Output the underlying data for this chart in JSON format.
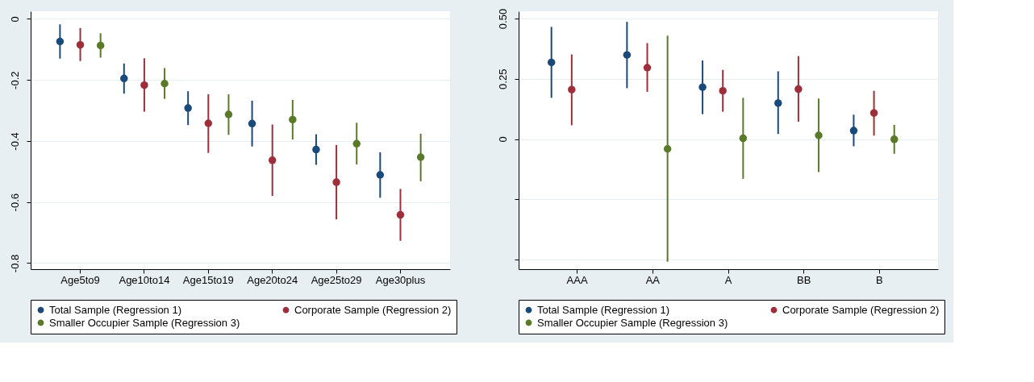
{
  "chart_data": [
    {
      "type": "scatter",
      "categories": [
        "Age5to9",
        "Age10to14",
        "Age15to19",
        "Age20to24",
        "Age25to29",
        "Age30plus"
      ],
      "series": [
        {
          "name": "Total Sample (Regression 1)",
          "color": "#1a4a7a",
          "values": [
            -0.074,
            -0.195,
            -0.292,
            -0.343,
            -0.428,
            -0.511
          ],
          "errors": [
            [
              -0.13,
              -0.018
            ],
            [
              -0.245,
              -0.146
            ],
            [
              -0.348,
              -0.237
            ],
            [
              -0.418,
              -0.268
            ],
            [
              -0.478,
              -0.378
            ],
            [
              -0.586,
              -0.437
            ]
          ]
        },
        {
          "name": "Corporate Sample (Regression 2)",
          "color": "#9e2f3a",
          "values": [
            -0.085,
            -0.217,
            -0.342,
            -0.463,
            -0.535,
            -0.642
          ],
          "errors": [
            [
              -0.138,
              -0.03
            ],
            [
              -0.304,
              -0.129
            ],
            [
              -0.439,
              -0.247
            ],
            [
              -0.58,
              -0.346
            ],
            [
              -0.657,
              -0.413
            ],
            [
              -0.727,
              -0.557
            ]
          ]
        },
        {
          "name": "Smaller Occupier Sample (Regression 3)",
          "color": "#5a7a2a",
          "values": [
            -0.087,
            -0.212,
            -0.313,
            -0.33,
            -0.409,
            -0.453
          ],
          "errors": [
            [
              -0.127,
              -0.047
            ],
            [
              -0.262,
              -0.161
            ],
            [
              -0.38,
              -0.247
            ],
            [
              -0.395,
              -0.265
            ],
            [
              -0.477,
              -0.34
            ],
            [
              -0.532,
              -0.376
            ]
          ]
        }
      ],
      "ylim": [
        -0.82,
        0.025
      ],
      "yticks": [
        0,
        -0.2,
        -0.4,
        -0.6,
        -0.8
      ],
      "grid": "y",
      "legend": "bottom",
      "marker": "circle"
    },
    {
      "type": "scatter",
      "categories": [
        "AAA",
        "AA",
        "A",
        "BB",
        "B"
      ],
      "series": [
        {
          "name": "Total Sample (Regression 1)",
          "color": "#1a4a7a",
          "values": [
            0.318,
            0.349,
            0.215,
            0.149,
            0.035
          ],
          "errors": [
            [
              0.171,
              0.465
            ],
            [
              0.211,
              0.486
            ],
            [
              0.103,
              0.326
            ],
            [
              0.021,
              0.281
            ],
            [
              -0.03,
              0.101
            ]
          ]
        },
        {
          "name": "Corporate Sample (Regression 2)",
          "color": "#9e2f3a",
          "values": [
            0.205,
            0.296,
            0.2,
            0.207,
            0.108
          ],
          "errors": [
            [
              0.057,
              0.351
            ],
            [
              0.196,
              0.398
            ],
            [
              0.113,
              0.287
            ],
            [
              0.072,
              0.344
            ],
            [
              0.014,
              0.2
            ]
          ]
        },
        {
          "name": "Smaller Occupier Sample (Regression 3)",
          "color": "#5a7a2a",
          "values": [
            null,
            -0.041,
            0.003,
            0.015,
            -0.001
          ],
          "errors": [
            null,
            [
              -0.509,
              0.429
            ],
            [
              -0.165,
              0.171
            ],
            [
              -0.137,
              0.168
            ],
            [
              -0.061,
              0.059
            ]
          ]
        }
      ],
      "ylim": [
        -0.54,
        0.53
      ],
      "yticks": [
        {
          "value": 0.5,
          "label": "0.50"
        },
        0.25,
        0,
        {
          "value": -0.25,
          "label": null
        },
        {
          "value": -0.5,
          "label": null
        }
      ],
      "grid": "y",
      "legend": "bottom",
      "marker": "circle"
    }
  ]
}
